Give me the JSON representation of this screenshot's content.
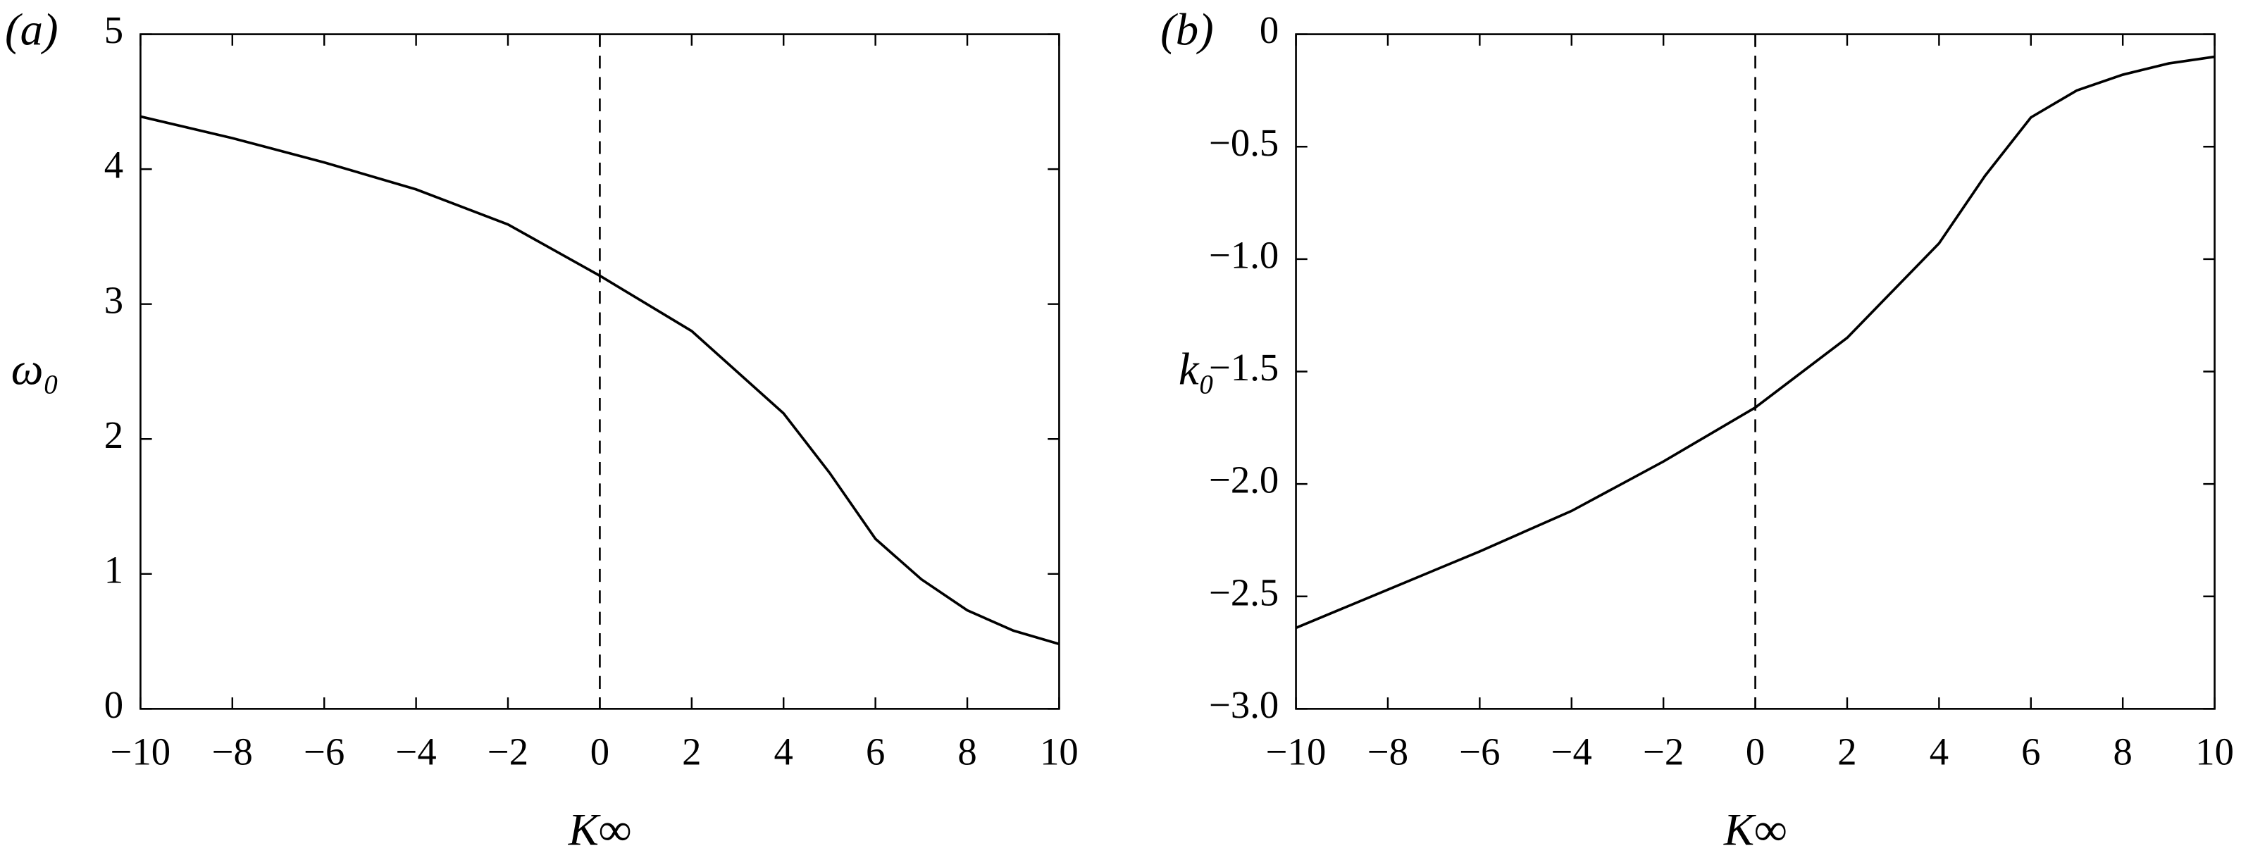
{
  "chart_data": [
    {
      "type": "line",
      "panel_label": "(a)",
      "x_label": "K∞",
      "y_label": "ω₀",
      "x": [
        -10,
        -8,
        -6,
        -4,
        -2,
        0,
        2,
        4,
        5,
        6,
        7,
        8,
        9,
        10
      ],
      "values": [
        4.39,
        4.23,
        4.05,
        3.85,
        3.59,
        3.21,
        2.8,
        2.19,
        1.75,
        1.26,
        0.96,
        0.73,
        0.58,
        0.48
      ],
      "color": "#000000",
      "xlim": [
        -10,
        10
      ],
      "xticks": [
        {
          "value": -10,
          "label": "−10"
        },
        {
          "value": -8,
          "label": "−8"
        },
        {
          "value": -6,
          "label": "−6"
        },
        {
          "value": -4,
          "label": "−4"
        },
        {
          "value": -2,
          "label": "−2"
        },
        0,
        2,
        4,
        6,
        8,
        10
      ],
      "ylim": [
        0,
        5
      ],
      "yticks": [
        0,
        1,
        2,
        3,
        4,
        5
      ],
      "vline": 0
    },
    {
      "type": "line",
      "panel_label": "(b)",
      "x_label": "K∞",
      "y_label": "k₀",
      "x": [
        -10,
        -8,
        -6,
        -4,
        -2,
        0,
        2,
        4,
        5,
        6,
        7,
        8,
        9,
        10
      ],
      "values": [
        -2.64,
        -2.47,
        -2.3,
        -2.12,
        -1.9,
        -1.66,
        -1.35,
        -0.93,
        -0.63,
        -0.37,
        -0.25,
        -0.18,
        -0.13,
        -0.1
      ],
      "color": "#000000",
      "xlim": [
        -10,
        10
      ],
      "xticks": [
        {
          "value": -10,
          "label": "−10"
        },
        {
          "value": -8,
          "label": "−8"
        },
        {
          "value": -6,
          "label": "−6"
        },
        {
          "value": -4,
          "label": "−4"
        },
        {
          "value": -2,
          "label": "−2"
        },
        0,
        2,
        4,
        6,
        8,
        10
      ],
      "ylim": [
        -3,
        0
      ],
      "yticks": [
        {
          "value": -3,
          "label": "−3.0"
        },
        {
          "value": -2.5,
          "label": "−2.5"
        },
        {
          "value": -2,
          "label": "−2.0"
        },
        {
          "value": -1.5,
          "label": "−1.5"
        },
        {
          "value": -1,
          "label": "−1.0"
        },
        {
          "value": -0.5,
          "label": "−0.5"
        },
        0
      ],
      "vline": 0
    }
  ]
}
